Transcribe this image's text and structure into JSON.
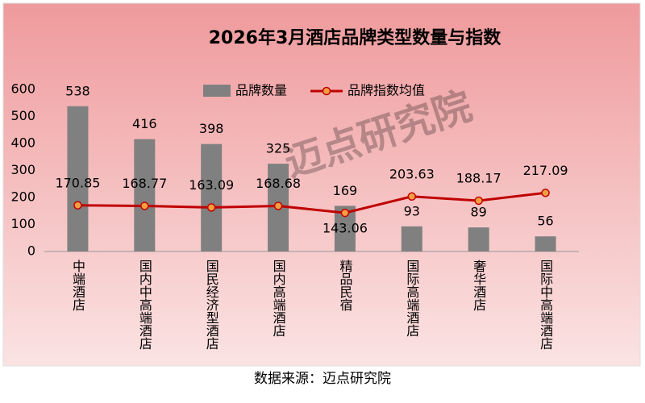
{
  "chart_data": {
    "type": "bar-line",
    "title": "2026年3月酒店品牌类型数量与指数",
    "categories": [
      "中端酒店",
      "国内中高端酒店",
      "国民经济型酒店",
      "国内高端酒店",
      "精品民宿",
      "国际高端酒店",
      "奢华酒店",
      "国际中高端酒店"
    ],
    "series": [
      {
        "name": "品牌数量",
        "type": "bar",
        "color": "#808080",
        "values": [
          538,
          416,
          398,
          325,
          169,
          93,
          89,
          56
        ]
      },
      {
        "name": "品牌指数均值",
        "type": "line",
        "color": "#c00000",
        "marker_color": "#f4a040",
        "values": [
          170.85,
          168.77,
          163.09,
          168.68,
          143.06,
          203.63,
          188.17,
          217.09
        ]
      }
    ],
    "ylim": [
      0,
      600
    ],
    "yticks": [
      0,
      100,
      200,
      300,
      400,
      500,
      600
    ],
    "watermark": "迈点研究院",
    "source": "数据来源：迈点研究院"
  }
}
